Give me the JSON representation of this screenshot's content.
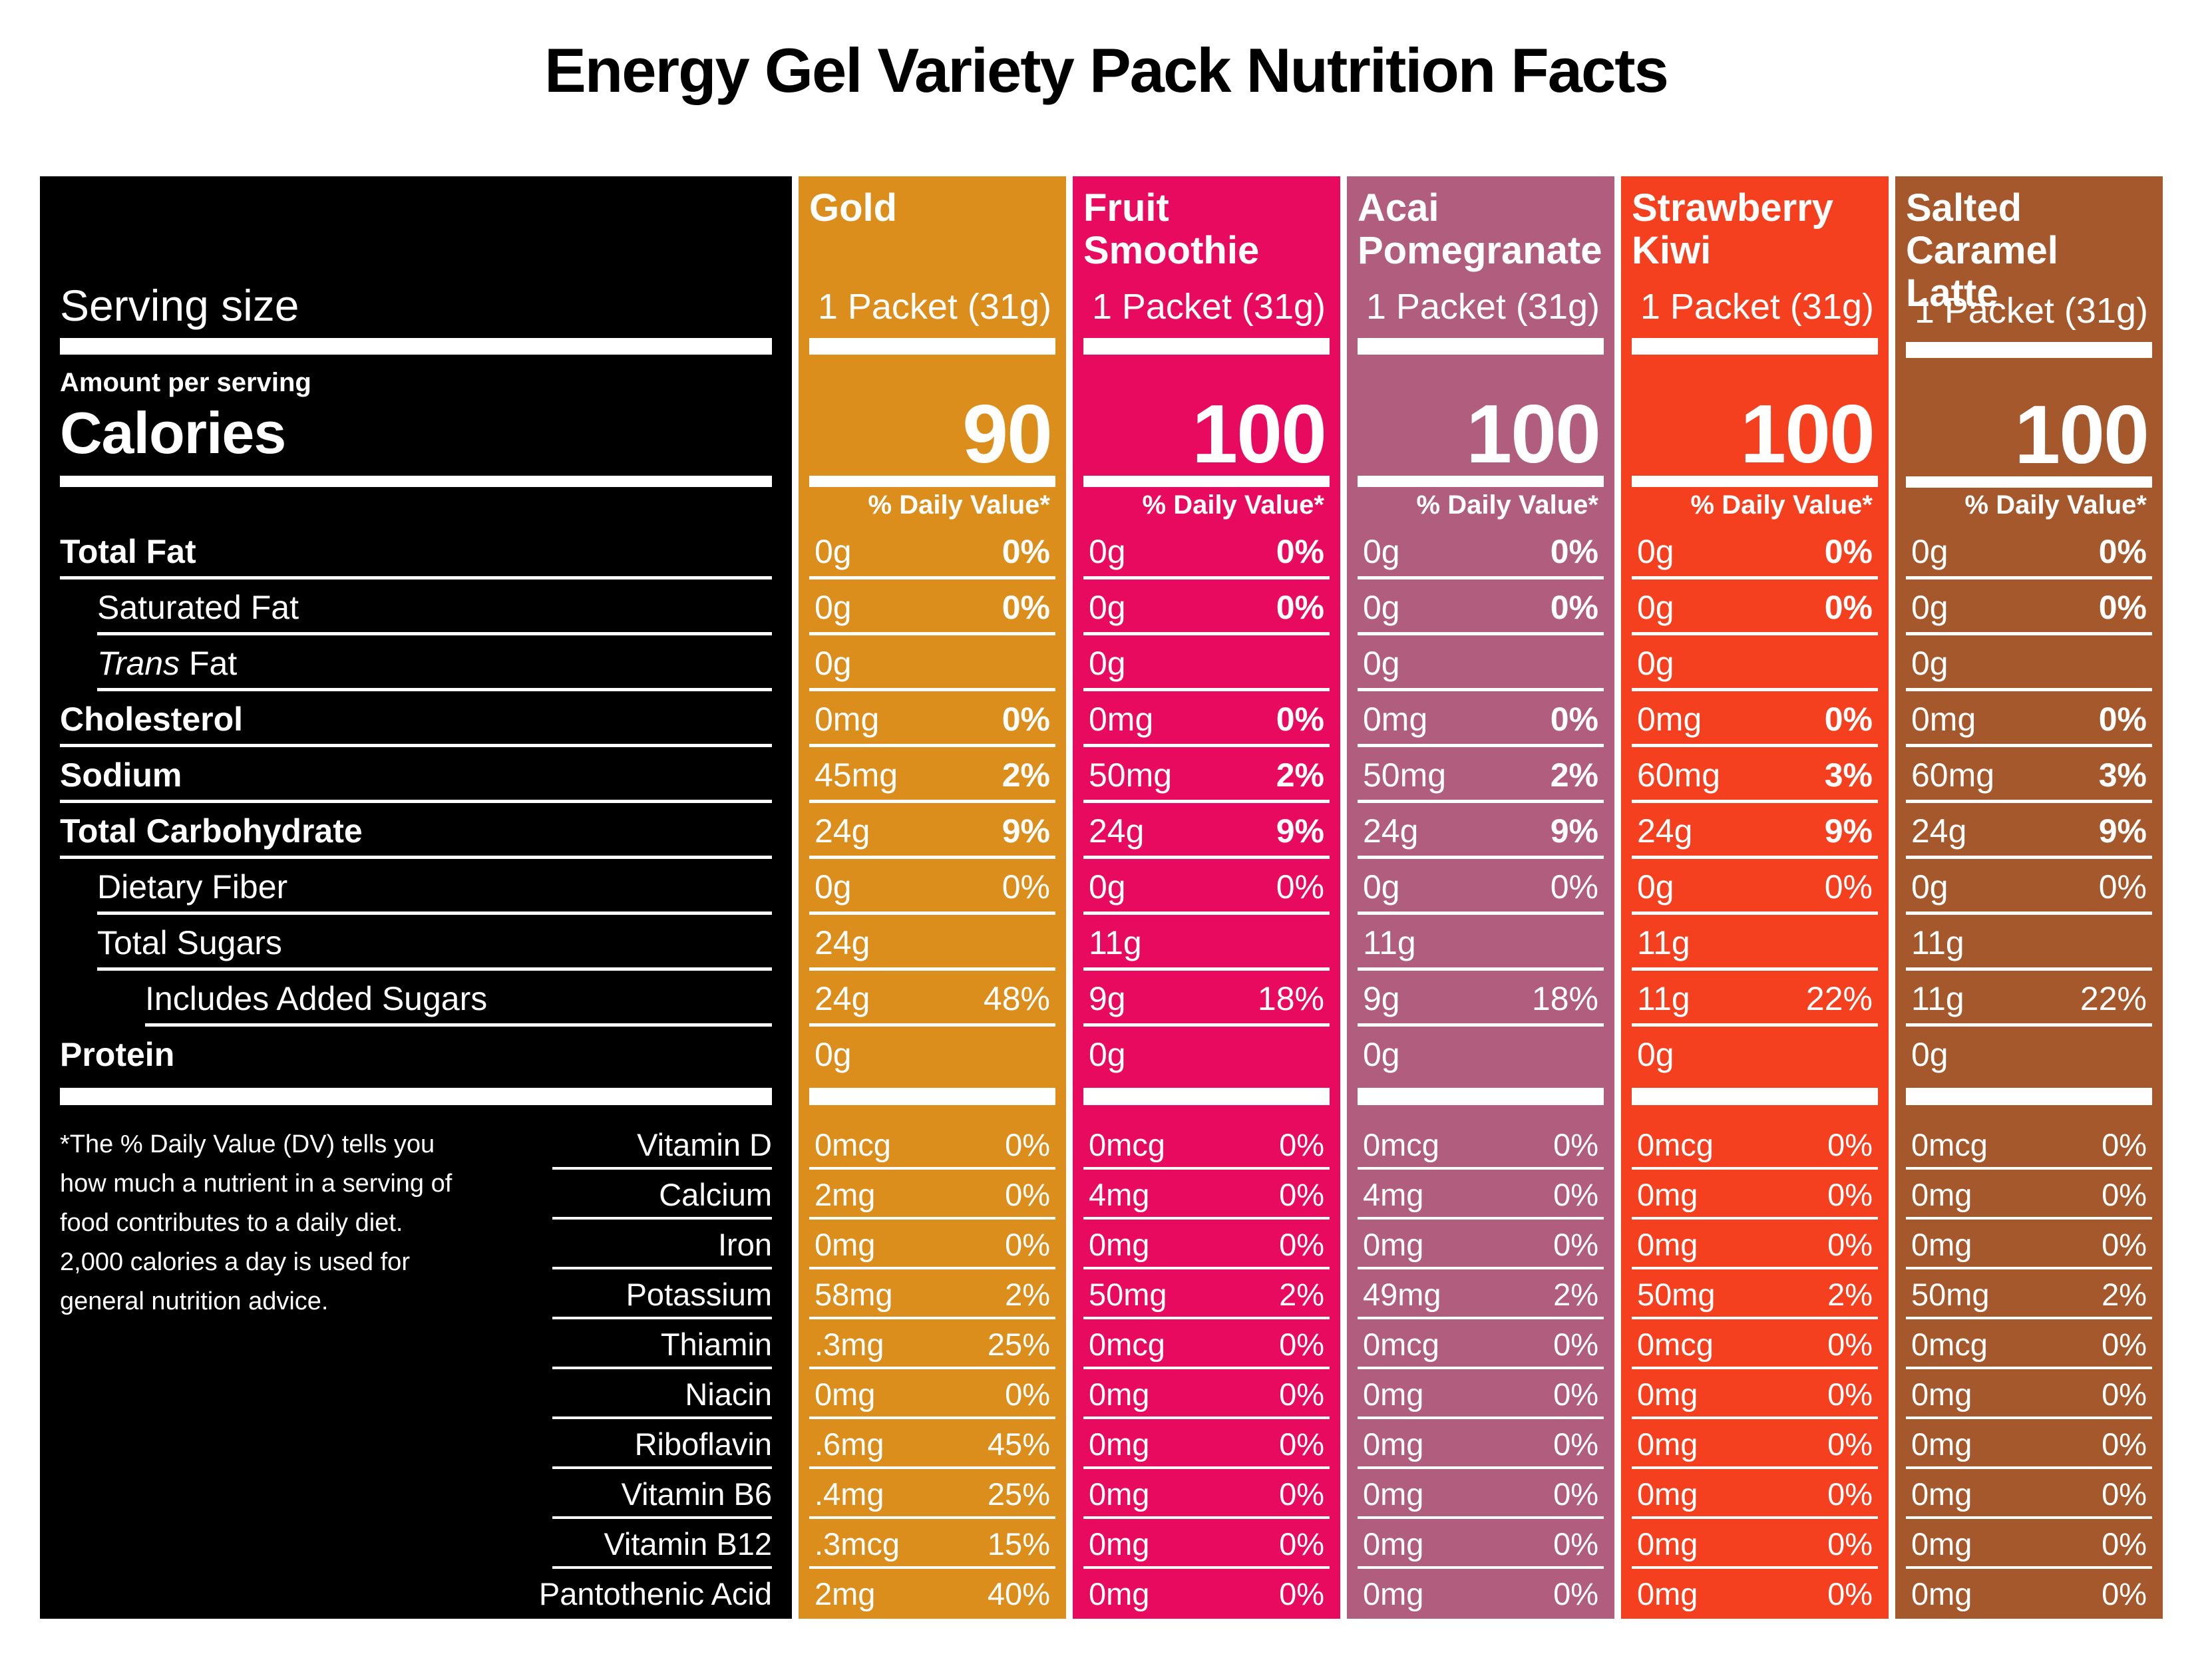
{
  "title": "Energy Gel Variety Pack Nutrition Facts",
  "label": {
    "serving_size_label": "Serving size",
    "amount_per_serving": "Amount per serving",
    "calories_label": "Calories",
    "daily_value_header": "% Daily Value*",
    "footnote": "*The % Daily Value (DV) tells you how much a nutrient in a serving of food contributes to a daily diet. 2,000 calories a day is used for general nutrition advice.",
    "nutrients": [
      {
        "label": "Total Fat",
        "bold": true,
        "indent": 0
      },
      {
        "label": "Saturated Fat",
        "bold": false,
        "indent": 1
      },
      {
        "label": "Fat",
        "italic_prefix": "Trans",
        "bold": false,
        "indent": 1
      },
      {
        "label": "Cholesterol",
        "bold": true,
        "indent": 0
      },
      {
        "label": "Sodium",
        "bold": true,
        "indent": 0
      },
      {
        "label": "Total Carbohydrate",
        "bold": true,
        "indent": 0
      },
      {
        "label": "Dietary Fiber",
        "bold": false,
        "indent": 1
      },
      {
        "label": "Total Sugars",
        "bold": false,
        "indent": 1
      },
      {
        "label": "Includes Added Sugars",
        "bold": false,
        "indent": 2
      },
      {
        "label": "Protein",
        "bold": true,
        "indent": 0,
        "noline": true
      }
    ],
    "vitamins": [
      "Vitamin D",
      "Calcium",
      "Iron",
      "Potassium",
      "Thiamin",
      "Niacin",
      "Riboflavin",
      "Vitamin B6",
      "Vitamin B12",
      "Pantothenic Acid"
    ]
  },
  "flavors": [
    {
      "name": "Gold",
      "color": "#DB8E1B",
      "serving": "1 Packet (31g)",
      "calories": "90",
      "rows": [
        {
          "amount": "0g",
          "dv": "0%",
          "dv_bold": true
        },
        {
          "amount": "0g",
          "dv": "0%",
          "dv_bold": true
        },
        {
          "amount": "0g",
          "dv": "",
          "dv_bold": false
        },
        {
          "amount": "0mg",
          "dv": "0%",
          "dv_bold": true
        },
        {
          "amount": "45mg",
          "dv": "2%",
          "dv_bold": true
        },
        {
          "amount": "24g",
          "dv": "9%",
          "dv_bold": true
        },
        {
          "amount": "0g",
          "dv": "0%",
          "dv_bold": false
        },
        {
          "amount": "24g",
          "dv": "",
          "dv_bold": false
        },
        {
          "amount": "24g",
          "dv": "48%",
          "dv_bold": false
        },
        {
          "amount": "0g",
          "dv": "",
          "dv_bold": false
        }
      ],
      "vitamin_rows": [
        {
          "amount": "0mcg",
          "dv": "0%"
        },
        {
          "amount": "2mg",
          "dv": "0%"
        },
        {
          "amount": "0mg",
          "dv": "0%"
        },
        {
          "amount": "58mg",
          "dv": "2%"
        },
        {
          "amount": ".3mg",
          "dv": "25%"
        },
        {
          "amount": "0mg",
          "dv": "0%"
        },
        {
          "amount": ".6mg",
          "dv": "45%"
        },
        {
          "amount": ".4mg",
          "dv": "25%"
        },
        {
          "amount": ".3mcg",
          "dv": "15%"
        },
        {
          "amount": "2mg",
          "dv": "40%"
        }
      ]
    },
    {
      "name": "Fruit Smoothie",
      "color": "#E80A5F",
      "serving": "1 Packet (31g)",
      "calories": "100",
      "rows": [
        {
          "amount": "0g",
          "dv": "0%",
          "dv_bold": true
        },
        {
          "amount": "0g",
          "dv": "0%",
          "dv_bold": true
        },
        {
          "amount": "0g",
          "dv": "",
          "dv_bold": false
        },
        {
          "amount": "0mg",
          "dv": "0%",
          "dv_bold": true
        },
        {
          "amount": "50mg",
          "dv": "2%",
          "dv_bold": true
        },
        {
          "amount": "24g",
          "dv": "9%",
          "dv_bold": true
        },
        {
          "amount": "0g",
          "dv": "0%",
          "dv_bold": false
        },
        {
          "amount": "11g",
          "dv": "",
          "dv_bold": false
        },
        {
          "amount": "9g",
          "dv": "18%",
          "dv_bold": false
        },
        {
          "amount": "0g",
          "dv": "",
          "dv_bold": false
        }
      ],
      "vitamin_rows": [
        {
          "amount": "0mcg",
          "dv": "0%"
        },
        {
          "amount": "4mg",
          "dv": "0%"
        },
        {
          "amount": "0mg",
          "dv": "0%"
        },
        {
          "amount": "50mg",
          "dv": "2%"
        },
        {
          "amount": "0mcg",
          "dv": "0%"
        },
        {
          "amount": "0mg",
          "dv": "0%"
        },
        {
          "amount": "0mg",
          "dv": "0%"
        },
        {
          "amount": "0mg",
          "dv": "0%"
        },
        {
          "amount": "0mg",
          "dv": "0%"
        },
        {
          "amount": "0mg",
          "dv": "0%"
        }
      ]
    },
    {
      "name": "Acai Pomegranate",
      "color": "#B05D7E",
      "serving": "1 Packet (31g)",
      "calories": "100",
      "rows": [
        {
          "amount": "0g",
          "dv": "0%",
          "dv_bold": true
        },
        {
          "amount": "0g",
          "dv": "0%",
          "dv_bold": true
        },
        {
          "amount": "0g",
          "dv": "",
          "dv_bold": false
        },
        {
          "amount": "0mg",
          "dv": "0%",
          "dv_bold": true
        },
        {
          "amount": "50mg",
          "dv": "2%",
          "dv_bold": true
        },
        {
          "amount": "24g",
          "dv": "9%",
          "dv_bold": true
        },
        {
          "amount": "0g",
          "dv": "0%",
          "dv_bold": false
        },
        {
          "amount": "11g",
          "dv": "",
          "dv_bold": false
        },
        {
          "amount": "9g",
          "dv": "18%",
          "dv_bold": false
        },
        {
          "amount": "0g",
          "dv": "",
          "dv_bold": false
        }
      ],
      "vitamin_rows": [
        {
          "amount": "0mcg",
          "dv": "0%"
        },
        {
          "amount": "4mg",
          "dv": "0%"
        },
        {
          "amount": "0mg",
          "dv": "0%"
        },
        {
          "amount": "49mg",
          "dv": "2%"
        },
        {
          "amount": "0mcg",
          "dv": "0%"
        },
        {
          "amount": "0mg",
          "dv": "0%"
        },
        {
          "amount": "0mg",
          "dv": "0%"
        },
        {
          "amount": "0mg",
          "dv": "0%"
        },
        {
          "amount": "0mg",
          "dv": "0%"
        },
        {
          "amount": "0mg",
          "dv": "0%"
        }
      ]
    },
    {
      "name": "Strawberry Kiwi",
      "color": "#F5401F",
      "serving": "1 Packet (31g)",
      "calories": "100",
      "rows": [
        {
          "amount": "0g",
          "dv": "0%",
          "dv_bold": true
        },
        {
          "amount": "0g",
          "dv": "0%",
          "dv_bold": true
        },
        {
          "amount": "0g",
          "dv": "",
          "dv_bold": false
        },
        {
          "amount": "0mg",
          "dv": "0%",
          "dv_bold": true
        },
        {
          "amount": "60mg",
          "dv": "3%",
          "dv_bold": true
        },
        {
          "amount": "24g",
          "dv": "9%",
          "dv_bold": true
        },
        {
          "amount": "0g",
          "dv": "0%",
          "dv_bold": false
        },
        {
          "amount": "11g",
          "dv": "",
          "dv_bold": false
        },
        {
          "amount": "11g",
          "dv": "22%",
          "dv_bold": false
        },
        {
          "amount": "0g",
          "dv": "",
          "dv_bold": false
        }
      ],
      "vitamin_rows": [
        {
          "amount": "0mcg",
          "dv": "0%"
        },
        {
          "amount": "0mg",
          "dv": "0%"
        },
        {
          "amount": "0mg",
          "dv": "0%"
        },
        {
          "amount": "50mg",
          "dv": "2%"
        },
        {
          "amount": "0mcg",
          "dv": "0%"
        },
        {
          "amount": "0mg",
          "dv": "0%"
        },
        {
          "amount": "0mg",
          "dv": "0%"
        },
        {
          "amount": "0mg",
          "dv": "0%"
        },
        {
          "amount": "0mg",
          "dv": "0%"
        },
        {
          "amount": "0mg",
          "dv": "0%"
        }
      ]
    },
    {
      "name": "Salted Caramel Latte",
      "color": "#A4582B",
      "serving": "1 Packet (31g)",
      "calories": "100",
      "rows": [
        {
          "amount": "0g",
          "dv": "0%",
          "dv_bold": true
        },
        {
          "amount": "0g",
          "dv": "0%",
          "dv_bold": true
        },
        {
          "amount": "0g",
          "dv": "",
          "dv_bold": false
        },
        {
          "amount": "0mg",
          "dv": "0%",
          "dv_bold": true
        },
        {
          "amount": "60mg",
          "dv": "3%",
          "dv_bold": true
        },
        {
          "amount": "24g",
          "dv": "9%",
          "dv_bold": true
        },
        {
          "amount": "0g",
          "dv": "0%",
          "dv_bold": false
        },
        {
          "amount": "11g",
          "dv": "",
          "dv_bold": false
        },
        {
          "amount": "11g",
          "dv": "22%",
          "dv_bold": false
        },
        {
          "amount": "0g",
          "dv": "",
          "dv_bold": false
        }
      ],
      "vitamin_rows": [
        {
          "amount": "0mcg",
          "dv": "0%"
        },
        {
          "amount": "0mg",
          "dv": "0%"
        },
        {
          "amount": "0mg",
          "dv": "0%"
        },
        {
          "amount": "50mg",
          "dv": "2%"
        },
        {
          "amount": "0mcg",
          "dv": "0%"
        },
        {
          "amount": "0mg",
          "dv": "0%"
        },
        {
          "amount": "0mg",
          "dv": "0%"
        },
        {
          "amount": "0mg",
          "dv": "0%"
        },
        {
          "amount": "0mg",
          "dv": "0%"
        },
        {
          "amount": "0mg",
          "dv": "0%"
        }
      ]
    }
  ]
}
